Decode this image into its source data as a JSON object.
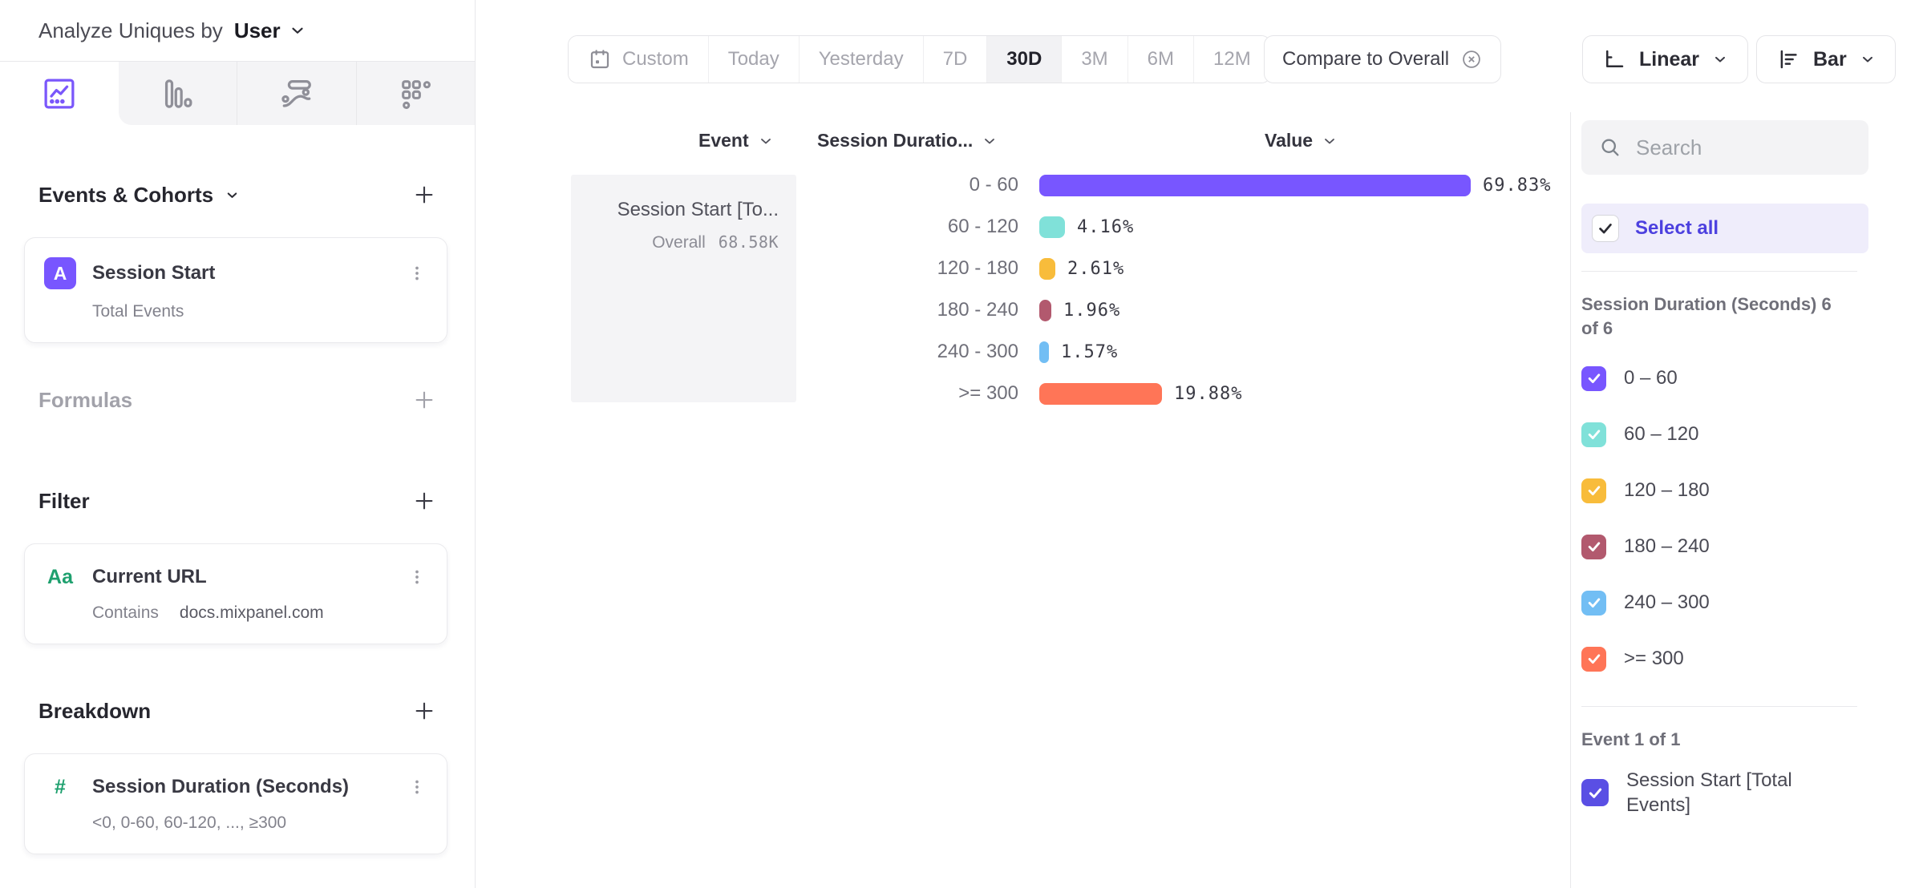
{
  "header": {
    "analyze_label": "Analyze Uniques by",
    "entity": "User"
  },
  "sidebar": {
    "events_section": {
      "title": "Events & Cohorts"
    },
    "event_card": {
      "badge": "A",
      "title": "Session Start",
      "subtitle": "Total Events"
    },
    "formulas_section": {
      "title": "Formulas"
    },
    "filter_section": {
      "title": "Filter"
    },
    "filter_card": {
      "icon": "Aa",
      "title": "Current URL",
      "operator": "Contains",
      "value": "docs.mixpanel.com"
    },
    "breakdown_section": {
      "title": "Breakdown"
    },
    "breakdown_card": {
      "icon": "#",
      "title": "Session Duration (Seconds)",
      "subtitle": "<0, 0-60, 60-120, ..., ≥300"
    }
  },
  "toolbar": {
    "date_ranges": [
      "Custom",
      "Today",
      "Yesterday",
      "7D",
      "30D",
      "3M",
      "6M",
      "12M"
    ],
    "selected_range": "30D",
    "compare_label": "Compare to Overall",
    "scale_label": "Linear",
    "chart_type_label": "Bar"
  },
  "chart": {
    "headers": {
      "event": "Event",
      "breakdown": "Session Duratio...",
      "value": "Value"
    },
    "event_cell": {
      "title": "Session Start [To...",
      "overall_label": "Overall",
      "overall_value": "68.58K"
    },
    "max_value": 69.83,
    "rows": [
      {
        "label": "0 - 60",
        "value": 69.83,
        "display": "69.83%",
        "color": "#7856FF"
      },
      {
        "label": "60 - 120",
        "value": 4.16,
        "display": "4.16%",
        "color": "#80E1D9"
      },
      {
        "label": "120 - 180",
        "value": 2.61,
        "display": "2.61%",
        "color": "#F8BC3B"
      },
      {
        "label": "180 - 240",
        "value": 1.96,
        "display": "1.96%",
        "color": "#B2596E"
      },
      {
        "label": "240 - 300",
        "value": 1.57,
        "display": "1.57%",
        "color": "#72BEF4"
      },
      {
        "label": ">= 300",
        "value": 19.88,
        "display": "19.88%",
        "color": "#FF7557"
      }
    ]
  },
  "chart_data": {
    "type": "bar",
    "orientation": "horizontal",
    "title": "Session Start [Total Events] broken down by Session Duration (Seconds), 30D, Uniques by User",
    "categories": [
      "0 - 60",
      "60 - 120",
      "120 - 180",
      "180 - 240",
      "240 - 300",
      ">= 300"
    ],
    "values": [
      69.83,
      4.16,
      2.61,
      1.96,
      1.57,
      19.88
    ],
    "value_suffix": "%",
    "overall": "68.58K",
    "colors": [
      "#7856FF",
      "#80E1D9",
      "#F8BC3B",
      "#B2596E",
      "#72BEF4",
      "#FF7557"
    ],
    "legend_position": "right",
    "grid": false
  },
  "legend_panel": {
    "search_placeholder": "Search",
    "select_all_label": "Select all",
    "breakdown_group_label": "Session Duration (Seconds) 6 of 6",
    "items": [
      {
        "label": "0 – 60",
        "color": "#7856FF"
      },
      {
        "label": "60 – 120",
        "color": "#80E1D9"
      },
      {
        "label": "120 – 180",
        "color": "#F8BC3B"
      },
      {
        "label": "180 – 240",
        "color": "#B2596E"
      },
      {
        "label": "240 – 300",
        "color": "#72BEF4"
      },
      {
        "label": ">= 300",
        "color": "#FF7557"
      }
    ],
    "event_group_label": "Event 1 of 1",
    "event_item": {
      "label": "Session Start [Total Events]",
      "color": "#5A4FE4"
    }
  },
  "colors": {
    "accent": "#7856FF",
    "select_all_text": "#4C40DF",
    "green": "#1EA06E"
  }
}
